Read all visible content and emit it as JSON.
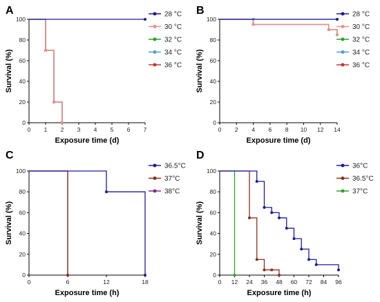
{
  "colors": {
    "navy": "#1a1a9c",
    "pink": "#f08c8c",
    "green": "#2ca02c",
    "lightblue": "#4f9fd8",
    "red": "#c0392b",
    "brown": "#8b2e1a",
    "purple": "#7b2d8e"
  },
  "chart_data": [
    {
      "panel": "A",
      "type": "line",
      "step": true,
      "xlabel": "Exposure time (d)",
      "ylabel": "Survival (%)",
      "xlim": [
        0,
        7
      ],
      "ylim": [
        0,
        100
      ],
      "xticks": [
        "0",
        "1",
        "2",
        "3",
        "4",
        "5",
        "6",
        "7"
      ],
      "yticks": [
        "0",
        "20",
        "40",
        "60",
        "80",
        "100"
      ],
      "legend_position": "right",
      "series": [
        {
          "name": "28 °C",
          "color": "#1a1a9c",
          "x": [
            0,
            7
          ],
          "y": [
            100,
            100
          ]
        },
        {
          "name": "30 °C",
          "color": "#f08c8c",
          "x": [
            0,
            1,
            1.5,
            2
          ],
          "y": [
            100,
            70,
            20,
            0
          ]
        },
        {
          "name": "32 °C",
          "color": "#2ca02c",
          "x": [
            0,
            1,
            1.5,
            2
          ],
          "y": [
            100,
            70,
            20,
            0
          ]
        },
        {
          "name": "34 °C",
          "color": "#4f9fd8",
          "x": [
            0,
            1,
            1.5,
            2
          ],
          "y": [
            100,
            70,
            20,
            0
          ]
        },
        {
          "name": "36 °C",
          "color": "#c0392b",
          "x": [
            0,
            1,
            1.5,
            2
          ],
          "y": [
            100,
            70,
            20,
            0
          ]
        }
      ]
    },
    {
      "panel": "B",
      "type": "line",
      "step": true,
      "xlabel": "Exposure time (d)",
      "ylabel": "Survival (%)",
      "xlim": [
        0,
        14
      ],
      "ylim": [
        0,
        100
      ],
      "xticks": [
        "0",
        "2",
        "4",
        "6",
        "8",
        "10",
        "12",
        "14"
      ],
      "yticks": [
        "0",
        "20",
        "40",
        "60",
        "80",
        "100"
      ],
      "legend_position": "right",
      "series": [
        {
          "name": "28 °C",
          "color": "#1a1a9c",
          "x": [
            0,
            14
          ],
          "y": [
            100,
            100
          ]
        },
        {
          "name": "30 °C",
          "color": "#f08c8c",
          "x": [
            0,
            4,
            13,
            14
          ],
          "y": [
            100,
            95,
            90,
            85
          ]
        },
        {
          "name": "32 °C",
          "color": "#2ca02c",
          "x": [
            0,
            4,
            13,
            14
          ],
          "y": [
            100,
            95,
            90,
            85
          ]
        },
        {
          "name": "34 °C",
          "color": "#4f9fd8",
          "x": [
            0,
            4,
            14
          ],
          "y": [
            100,
            100,
            100
          ]
        },
        {
          "name": "36 °C",
          "color": "#c0392b",
          "x": [
            0,
            4,
            13,
            14
          ],
          "y": [
            100,
            95,
            90,
            85
          ]
        }
      ]
    },
    {
      "panel": "C",
      "type": "line",
      "step": true,
      "xlabel": "Exposure time (h)",
      "ylabel": "Survival (%)",
      "xlim": [
        0,
        18
      ],
      "ylim": [
        0,
        100
      ],
      "xticks": [
        "0",
        "6",
        "12",
        "18"
      ],
      "yticks": [
        "0",
        "20",
        "40",
        "60",
        "80",
        "100"
      ],
      "legend_position": "right",
      "series": [
        {
          "name": "36.5°C",
          "color": "#1a1a9c",
          "x": [
            0,
            12,
            18
          ],
          "y": [
            100,
            80,
            0
          ]
        },
        {
          "name": "37°C",
          "color": "#8b2e1a",
          "x": [
            0,
            6
          ],
          "y": [
            100,
            0
          ]
        },
        {
          "name": "38°C",
          "color": "#7b2d8e",
          "x": [
            0,
            6
          ],
          "y": [
            100,
            0
          ]
        }
      ]
    },
    {
      "panel": "D",
      "type": "line",
      "step": true,
      "xlabel": "Exposure time (h)",
      "ylabel": "Survival (%)",
      "xlim": [
        0,
        96
      ],
      "ylim": [
        0,
        100
      ],
      "xticks": [
        "0",
        "12",
        "24",
        "36",
        "48",
        "60",
        "72",
        "84",
        "96"
      ],
      "yticks": [
        "0",
        "20",
        "40",
        "60",
        "80",
        "100"
      ],
      "legend_position": "right",
      "series": [
        {
          "name": "36°C",
          "color": "#1a1a9c",
          "x": [
            0,
            30,
            36,
            42,
            48,
            54,
            60,
            66,
            72,
            78,
            96
          ],
          "y": [
            100,
            90,
            65,
            60,
            55,
            45,
            35,
            25,
            15,
            10,
            5
          ]
        },
        {
          "name": "36.5°C",
          "color": "#8b2e1a",
          "x": [
            0,
            24,
            30,
            36,
            42,
            48
          ],
          "y": [
            100,
            55,
            15,
            5,
            5,
            0
          ]
        },
        {
          "name": "37°C",
          "color": "#2ca02c",
          "x": [
            0,
            12
          ],
          "y": [
            100,
            0
          ]
        }
      ]
    }
  ]
}
